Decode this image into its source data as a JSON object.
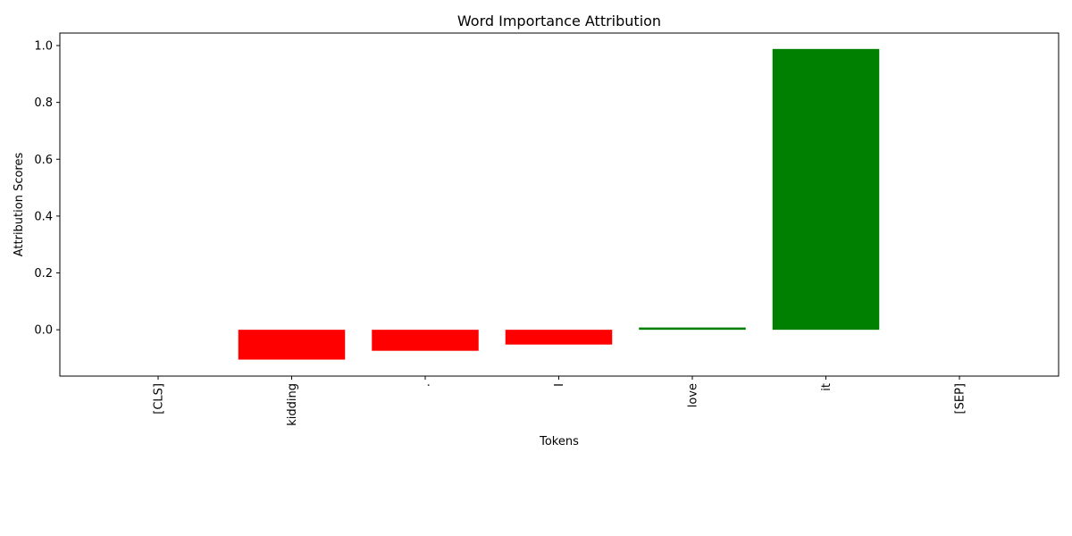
{
  "chart_data": {
    "type": "bar",
    "title": "Word Importance Attribution",
    "xlabel": "Tokens",
    "ylabel": "Attribution Scores",
    "categories": [
      "[CLS]",
      "kidding",
      ".",
      "I",
      "love",
      "it",
      "[SEP]"
    ],
    "values": [
      0.0,
      -0.105,
      -0.074,
      -0.052,
      0.008,
      0.988,
      0.0
    ],
    "colors": [
      "#ff0000",
      "#ff0000",
      "#ff0000",
      "#ff0000",
      "#008000",
      "#008000",
      "#ff0000"
    ],
    "positive_color": "#008000",
    "negative_color": "#ff0000",
    "ylim": [
      -0.163,
      1.044
    ],
    "yticks": [
      0.0,
      0.2,
      0.4,
      0.6,
      0.8,
      1.0
    ],
    "ytick_labels": [
      "0.0",
      "0.2",
      "0.4",
      "0.6",
      "0.8",
      "1.0"
    ],
    "grid": false,
    "legend": "none"
  }
}
